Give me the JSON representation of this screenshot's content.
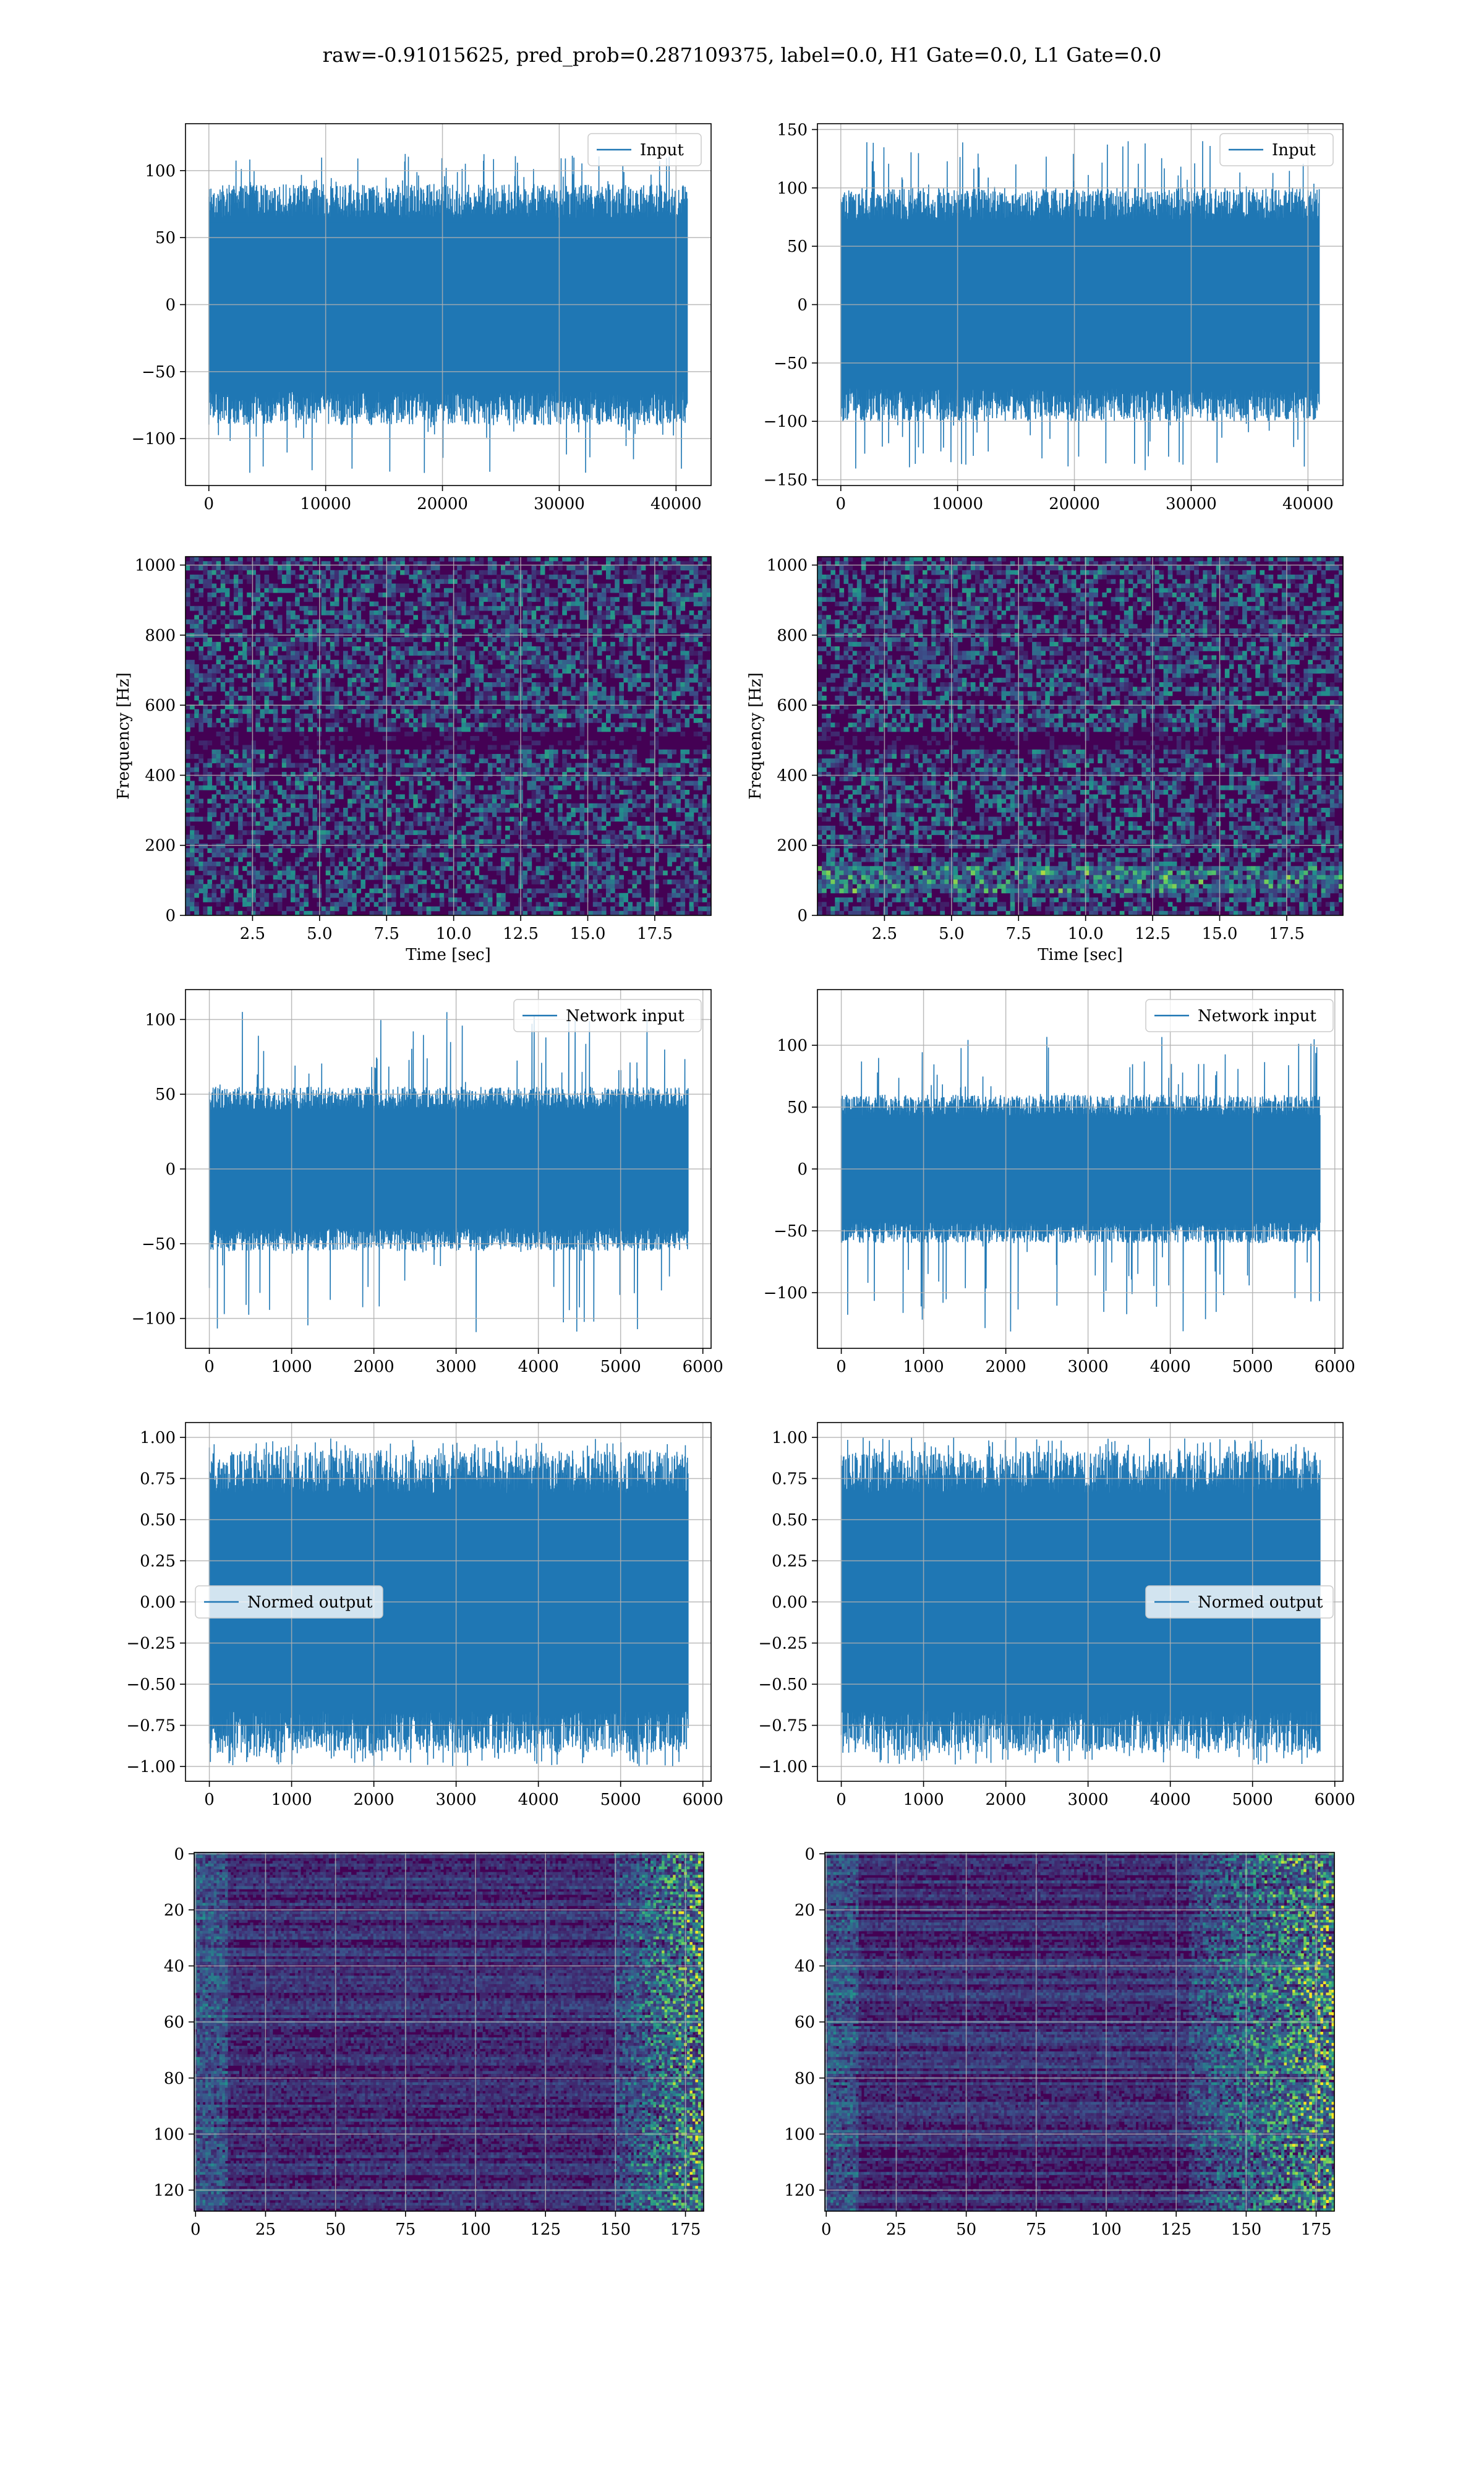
{
  "figure": {
    "title": "raw=-0.91015625, pred_prob=0.287109375, label=0.0, H1 Gate=0.0, L1 Gate=0.0"
  },
  "colors": {
    "series": "#1f77b4",
    "grid": "#b0b0b0",
    "axes": "#000000",
    "viridis_low": "#440154",
    "viridis_mid": "#21918c",
    "viridis_high": "#fde725"
  },
  "chart_data": [
    {
      "id": "input-h1",
      "type": "line",
      "legend": [
        "Input"
      ],
      "legend_loc": "upper right",
      "xlim": [
        -2000,
        43000
      ],
      "ylim": [
        -135,
        135
      ],
      "xticks": [
        0,
        10000,
        20000,
        30000,
        40000
      ],
      "xticklabels": [
        "0",
        "10000",
        "20000",
        "30000",
        "40000"
      ],
      "yticks": [
        -100,
        -50,
        0,
        50,
        100
      ],
      "yticklabels": [
        "−100",
        "−50",
        "0",
        "50",
        "100"
      ],
      "series": [
        {
          "name": "Input",
          "x_range": [
            0,
            40960
          ],
          "envelope": [
            -90,
            90
          ],
          "peaks": [
            -128,
            113
          ]
        }
      ],
      "grid": true,
      "xlabel": "",
      "ylabel": ""
    },
    {
      "id": "input-l1",
      "type": "line",
      "legend": [
        "Input"
      ],
      "legend_loc": "upper right",
      "xlim": [
        -2000,
        43000
      ],
      "ylim": [
        -155,
        155
      ],
      "xticks": [
        0,
        10000,
        20000,
        30000,
        40000
      ],
      "xticklabels": [
        "0",
        "10000",
        "20000",
        "30000",
        "40000"
      ],
      "yticks": [
        -150,
        -100,
        -50,
        0,
        50,
        100,
        150
      ],
      "yticklabels": [
        "−150",
        "−100",
        "−50",
        "0",
        "50",
        "100",
        "150"
      ],
      "series": [
        {
          "name": "Input",
          "x_range": [
            0,
            40960
          ],
          "envelope": [
            -100,
            100
          ],
          "peaks": [
            -143,
            140
          ]
        }
      ],
      "grid": true,
      "xlabel": "",
      "ylabel": ""
    },
    {
      "id": "spectrogram-h1",
      "type": "heatmap",
      "colormap": "viridis",
      "xlim": [
        0,
        19.6
      ],
      "ylim": [
        0,
        1024
      ],
      "xticks": [
        2.5,
        5.0,
        7.5,
        10.0,
        12.5,
        15.0,
        17.5
      ],
      "xticklabels": [
        "2.5",
        "5.0",
        "7.5",
        "10.0",
        "12.5",
        "15.0",
        "17.5"
      ],
      "yticks": [
        0,
        200,
        400,
        600,
        800,
        1000
      ],
      "yticklabels": [
        "0",
        "200",
        "400",
        "600",
        "800",
        "1000"
      ],
      "xlabel": "Time [sec]",
      "ylabel": "Frequency [Hz]",
      "grid": true,
      "dark_band_hz": [
        480,
        520
      ]
    },
    {
      "id": "spectrogram-l1",
      "type": "heatmap",
      "colormap": "viridis",
      "xlim": [
        0,
        19.6
      ],
      "ylim": [
        0,
        1024
      ],
      "xticks": [
        2.5,
        5.0,
        7.5,
        10.0,
        12.5,
        15.0,
        17.5
      ],
      "xticklabels": [
        "2.5",
        "5.0",
        "7.5",
        "10.0",
        "12.5",
        "15.0",
        "17.5"
      ],
      "yticks": [
        0,
        200,
        400,
        600,
        800,
        1000
      ],
      "yticklabels": [
        "0",
        "200",
        "400",
        "600",
        "800",
        "1000"
      ],
      "xlabel": "Time [sec]",
      "ylabel": "Frequency [Hz]",
      "grid": true,
      "dark_band_hz": [
        480,
        520
      ],
      "bright_band_hz": [
        60,
        140
      ]
    },
    {
      "id": "network-input-h1",
      "type": "line",
      "legend": [
        "Network input"
      ],
      "legend_loc": "upper right",
      "xlim": [
        -290,
        6100
      ],
      "ylim": [
        -120,
        120
      ],
      "xticks": [
        0,
        1000,
        2000,
        3000,
        4000,
        5000,
        6000
      ],
      "xticklabels": [
        "0",
        "1000",
        "2000",
        "3000",
        "4000",
        "5000",
        "6000"
      ],
      "yticks": [
        -100,
        -50,
        0,
        50,
        100
      ],
      "yticklabels": [
        "−100",
        "−50",
        "0",
        "50",
        "100"
      ],
      "series": [
        {
          "name": "Network input",
          "x_range": [
            0,
            5820
          ],
          "envelope": [
            -55,
            55
          ],
          "peaks": [
            -111,
            107
          ]
        }
      ],
      "grid": true,
      "xlabel": "",
      "ylabel": ""
    },
    {
      "id": "network-input-l1",
      "type": "line",
      "legend": [
        "Network input"
      ],
      "legend_loc": "upper right",
      "xlim": [
        -290,
        6100
      ],
      "ylim": [
        -145,
        145
      ],
      "xticks": [
        0,
        1000,
        2000,
        3000,
        4000,
        5000,
        6000
      ],
      "xticklabels": [
        "0",
        "1000",
        "2000",
        "3000",
        "4000",
        "5000",
        "6000"
      ],
      "yticks": [
        -100,
        -50,
        0,
        50,
        100
      ],
      "yticklabels": [
        "−100",
        "−50",
        "0",
        "50",
        "100"
      ],
      "series": [
        {
          "name": "Network input",
          "x_range": [
            0,
            5820
          ],
          "envelope": [
            -60,
            60
          ],
          "peaks": [
            -132,
            107
          ]
        }
      ],
      "grid": true,
      "xlabel": "",
      "ylabel": ""
    },
    {
      "id": "normed-output-h1",
      "type": "line",
      "legend": [
        "Normed output"
      ],
      "legend_loc": "center left",
      "xlim": [
        -290,
        6100
      ],
      "ylim": [
        -1.09,
        1.09
      ],
      "xticks": [
        0,
        1000,
        2000,
        3000,
        4000,
        5000,
        6000
      ],
      "xticklabels": [
        "0",
        "1000",
        "2000",
        "3000",
        "4000",
        "5000",
        "6000"
      ],
      "yticks": [
        -1.0,
        -0.75,
        -0.5,
        -0.25,
        0.0,
        0.25,
        0.5,
        0.75,
        1.0
      ],
      "yticklabels": [
        "−1.00",
        "−0.75",
        "−0.50",
        "−0.25",
        "0.00",
        "0.25",
        "0.50",
        "0.75",
        "1.00"
      ],
      "series": [
        {
          "name": "Normed output",
          "x_range": [
            0,
            5820
          ],
          "envelope": [
            -0.92,
            0.92
          ],
          "peaks": [
            -1.0,
            1.0
          ]
        }
      ],
      "grid": true,
      "xlabel": "",
      "ylabel": ""
    },
    {
      "id": "normed-output-l1",
      "type": "line",
      "legend": [
        "Normed output"
      ],
      "legend_loc": "center right",
      "xlim": [
        -290,
        6100
      ],
      "ylim": [
        -1.09,
        1.09
      ],
      "xticks": [
        0,
        1000,
        2000,
        3000,
        4000,
        5000,
        6000
      ],
      "xticklabels": [
        "0",
        "1000",
        "2000",
        "3000",
        "4000",
        "5000",
        "6000"
      ],
      "yticks": [
        -1.0,
        -0.75,
        -0.5,
        -0.25,
        0.0,
        0.25,
        0.5,
        0.75,
        1.0
      ],
      "yticklabels": [
        "−1.00",
        "−0.75",
        "−0.50",
        "−0.25",
        "0.00",
        "0.25",
        "0.50",
        "0.75",
        "1.00"
      ],
      "series": [
        {
          "name": "Normed output",
          "x_range": [
            0,
            5820
          ],
          "envelope": [
            -0.92,
            0.92
          ],
          "peaks": [
            -1.0,
            1.0
          ]
        }
      ],
      "grid": true,
      "xlabel": "",
      "ylabel": ""
    },
    {
      "id": "feature-map-h1",
      "type": "heatmap",
      "colormap": "viridis",
      "xlim": [
        -0.5,
        181.5
      ],
      "ylim": [
        127.5,
        -0.5
      ],
      "y_inverted": true,
      "xticks": [
        0,
        25,
        50,
        75,
        100,
        125,
        150,
        175
      ],
      "xticklabels": [
        "0",
        "25",
        "50",
        "75",
        "100",
        "125",
        "150",
        "175"
      ],
      "yticks": [
        0,
        20,
        40,
        60,
        80,
        100,
        120
      ],
      "yticklabels": [
        "0",
        "20",
        "40",
        "60",
        "80",
        "100",
        "120"
      ],
      "rows": 128,
      "cols": 182,
      "bright_columns_from": 150,
      "grid": true,
      "xlabel": "",
      "ylabel": ""
    },
    {
      "id": "feature-map-l1",
      "type": "heatmap",
      "colormap": "viridis",
      "xlim": [
        -0.5,
        181.5
      ],
      "ylim": [
        127.5,
        -0.5
      ],
      "y_inverted": true,
      "xticks": [
        0,
        25,
        50,
        75,
        100,
        125,
        150,
        175
      ],
      "xticklabels": [
        "0",
        "25",
        "50",
        "75",
        "100",
        "125",
        "150",
        "175"
      ],
      "yticks": [
        0,
        20,
        40,
        60,
        80,
        100,
        120
      ],
      "yticklabels": [
        "0",
        "20",
        "40",
        "60",
        "80",
        "100",
        "120"
      ],
      "rows": 128,
      "cols": 182,
      "bright_columns_from": 130,
      "grid": true,
      "xlabel": "",
      "ylabel": ""
    }
  ]
}
